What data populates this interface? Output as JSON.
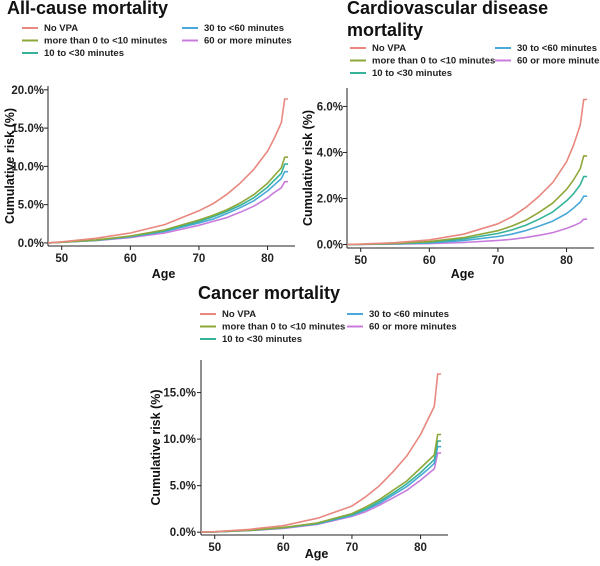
{
  "colors": {
    "no_vpa": "#e8887f",
    "lt10": "#8ea73a",
    "lt30": "#35b49a",
    "lt60": "#4aa8d8",
    "ge60": "#c77cdc"
  },
  "chart_data": [
    {
      "type": "line",
      "title": "All-cause mortality",
      "xlabel": "Age",
      "ylabel": "Cumulative risk (%)",
      "xlim": [
        48,
        84
      ],
      "ylim": [
        -0.4,
        20.5
      ],
      "x_ticks": [
        50,
        60,
        70,
        80
      ],
      "x_tick_labels": [
        "50",
        "60",
        "70",
        "80"
      ],
      "y_ticks": [
        0,
        5,
        10,
        15,
        20
      ],
      "y_tick_labels": [
        "0.0%",
        "5.0%",
        "10.0%",
        "15.0%",
        "20.0%"
      ],
      "legend_position": "top",
      "x": [
        48,
        50,
        55,
        60,
        65,
        70,
        72,
        74,
        76,
        78,
        80,
        81,
        82,
        82.5,
        83
      ],
      "series": [
        {
          "name": "No VPA",
          "color_key": "no_vpa",
          "values": [
            0,
            0.15,
            0.6,
            1.3,
            2.4,
            4.2,
            5.1,
            6.3,
            7.8,
            9.6,
            12.0,
            13.7,
            15.7,
            18.8,
            18.8
          ]
        },
        {
          "name": "more than 0 to <10 minutes",
          "color_key": "lt10",
          "values": [
            0,
            0.1,
            0.4,
            0.9,
            1.7,
            3.0,
            3.6,
            4.3,
            5.2,
            6.3,
            7.8,
            8.8,
            9.8,
            11.2,
            11.2
          ]
        },
        {
          "name": "10 to <30 minutes",
          "color_key": "lt30",
          "values": [
            0,
            0.1,
            0.35,
            0.85,
            1.6,
            2.8,
            3.4,
            4.1,
            4.9,
            5.9,
            7.3,
            8.2,
            9.1,
            10.3,
            10.3
          ]
        },
        {
          "name": "30 to <60 minutes",
          "color_key": "lt60",
          "values": [
            0,
            0.1,
            0.35,
            0.8,
            1.5,
            2.6,
            3.1,
            3.8,
            4.6,
            5.5,
            6.8,
            7.6,
            8.4,
            9.3,
            9.3
          ]
        },
        {
          "name": "60 or more minutes",
          "color_key": "ge60",
          "values": [
            0,
            0.1,
            0.3,
            0.7,
            1.3,
            2.3,
            2.8,
            3.3,
            4.0,
            4.8,
            5.9,
            6.6,
            7.2,
            8.0,
            8.0
          ]
        }
      ]
    },
    {
      "type": "line",
      "title": "Cardiovascular disease mortality",
      "xlabel": "Age",
      "ylabel": "Cumulative risk (%)",
      "xlim": [
        48,
        84
      ],
      "ylim": [
        -0.15,
        6.8
      ],
      "x_ticks": [
        50,
        60,
        70,
        80
      ],
      "x_tick_labels": [
        "50",
        "60",
        "70",
        "80"
      ],
      "y_ticks": [
        0,
        2,
        4,
        6
      ],
      "y_tick_labels": [
        "0.0%",
        "2.0%",
        "4.0%",
        "6.0%"
      ],
      "legend_position": "top",
      "x": [
        48,
        50,
        55,
        60,
        65,
        70,
        72,
        74,
        76,
        78,
        80,
        81,
        82,
        82.5,
        83
      ],
      "series": [
        {
          "name": "No VPA",
          "color_key": "no_vpa",
          "values": [
            0,
            0.02,
            0.08,
            0.2,
            0.45,
            0.9,
            1.2,
            1.6,
            2.1,
            2.7,
            3.6,
            4.3,
            5.2,
            6.3,
            6.3
          ]
        },
        {
          "name": "more than 0 to <10 minutes",
          "color_key": "lt10",
          "values": [
            0,
            0.01,
            0.05,
            0.13,
            0.3,
            0.6,
            0.8,
            1.05,
            1.4,
            1.8,
            2.4,
            2.8,
            3.3,
            3.85,
            3.85
          ]
        },
        {
          "name": "10 to <30 minutes",
          "color_key": "lt30",
          "values": [
            0,
            0.01,
            0.04,
            0.1,
            0.24,
            0.48,
            0.63,
            0.83,
            1.1,
            1.42,
            1.9,
            2.2,
            2.6,
            2.95,
            2.95
          ]
        },
        {
          "name": "30 to <60 minutes",
          "color_key": "lt60",
          "values": [
            0,
            0.01,
            0.03,
            0.07,
            0.17,
            0.35,
            0.45,
            0.6,
            0.8,
            1.02,
            1.35,
            1.58,
            1.85,
            2.1,
            2.1
          ]
        },
        {
          "name": "60 or more minutes",
          "color_key": "ge60",
          "values": [
            0,
            0.0,
            0.02,
            0.04,
            0.09,
            0.18,
            0.23,
            0.3,
            0.4,
            0.52,
            0.7,
            0.82,
            0.95,
            1.1,
            1.1
          ]
        }
      ]
    },
    {
      "type": "line",
      "title": "Cancer mortality",
      "xlabel": "Age",
      "ylabel": "Cumulative risk (%)",
      "xlim": [
        48,
        84
      ],
      "ylim": [
        -0.3,
        18.5
      ],
      "x_ticks": [
        50,
        60,
        70,
        80
      ],
      "x_tick_labels": [
        "50",
        "60",
        "70",
        "80"
      ],
      "y_ticks": [
        0,
        5,
        10,
        15
      ],
      "y_tick_labels": [
        "0.0%",
        "5.0%",
        "10.0%",
        "15.0%"
      ],
      "legend_position": "top",
      "x": [
        48,
        50,
        55,
        60,
        65,
        70,
        72,
        74,
        76,
        78,
        80,
        81,
        82,
        82.5,
        83
      ],
      "series": [
        {
          "name": "No VPA",
          "color_key": "no_vpa",
          "values": [
            0,
            0.05,
            0.3,
            0.7,
            1.5,
            2.8,
            3.8,
            5.0,
            6.5,
            8.2,
            10.5,
            12.0,
            13.5,
            17.0,
            17.0
          ]
        },
        {
          "name": "more than 0 to <10 minutes",
          "color_key": "lt10",
          "values": [
            0,
            0.04,
            0.2,
            0.5,
            1.0,
            2.0,
            2.7,
            3.5,
            4.5,
            5.5,
            6.9,
            7.6,
            8.3,
            10.5,
            10.5
          ]
        },
        {
          "name": "10 to <30 minutes",
          "color_key": "lt30",
          "values": [
            0,
            0.04,
            0.2,
            0.5,
            0.95,
            1.9,
            2.5,
            3.3,
            4.2,
            5.2,
            6.4,
            7.1,
            7.8,
            9.8,
            9.8
          ]
        },
        {
          "name": "30 to <60 minutes",
          "color_key": "lt60",
          "values": [
            0,
            0.03,
            0.18,
            0.45,
            0.9,
            1.8,
            2.4,
            3.1,
            4.0,
            4.9,
            6.1,
            6.7,
            7.4,
            9.2,
            9.2
          ]
        },
        {
          "name": "60 or more minutes",
          "color_key": "ge60",
          "values": [
            0,
            0.03,
            0.17,
            0.4,
            0.85,
            1.7,
            2.2,
            2.9,
            3.7,
            4.5,
            5.6,
            6.2,
            6.8,
            8.5,
            8.5
          ]
        }
      ]
    }
  ]
}
